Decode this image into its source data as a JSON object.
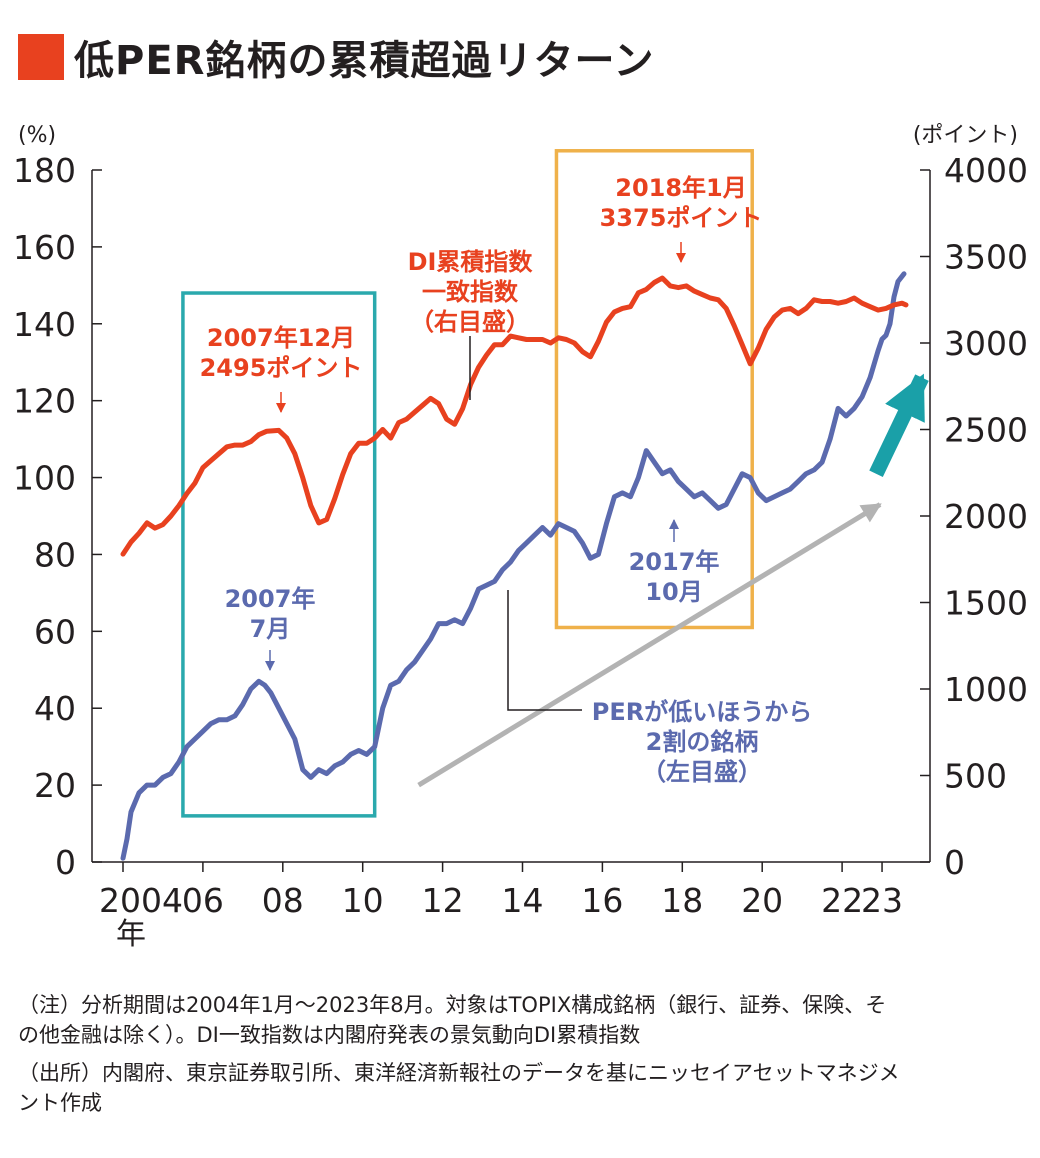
{
  "title": "低PER銘柄の累積超過リターン",
  "colors": {
    "accent": "#e8411f",
    "blue": "#5b6aae",
    "teal": "#23a3a8",
    "box_orange": "#efb14a",
    "box_teal": "#2aa9ad",
    "arrow_gray": "#b3b3b3",
    "arrow_teal": "#1aa0a8",
    "axis": "#231f20"
  },
  "chart_data": {
    "type": "line",
    "title": "低PER銘柄の累積超過リターン",
    "left_axis": {
      "unit": "(%)",
      "ylim": [
        0,
        180
      ],
      "ticks": [
        "0",
        "20",
        "40",
        "60",
        "80",
        "100",
        "120",
        "140",
        "160",
        "180"
      ]
    },
    "right_axis": {
      "unit": "(ポイント)",
      "ylim": [
        0,
        4000
      ],
      "ticks": [
        "0",
        "500",
        "1000",
        "1500",
        "2000",
        "2500",
        "3000",
        "3500",
        "4000"
      ]
    },
    "x_axis": {
      "range": [
        2004.0,
        2024.0
      ],
      "ticks": [
        {
          "x": 2004,
          "label": "2004"
        },
        {
          "x": 2006,
          "label": "06"
        },
        {
          "x": 2008,
          "label": "08"
        },
        {
          "x": 2010,
          "label": "10"
        },
        {
          "x": 2012,
          "label": "12"
        },
        {
          "x": 2014,
          "label": "14"
        },
        {
          "x": 2016,
          "label": "16"
        },
        {
          "x": 2018,
          "label": "18"
        },
        {
          "x": 2020,
          "label": "20"
        },
        {
          "x": 2022,
          "label": "22"
        },
        {
          "x": 2023,
          "label": "23"
        }
      ],
      "year_suffix": "年"
    },
    "series": [
      {
        "name": "PERが低いほうから2割の銘柄（左目盛）",
        "axis": "left",
        "color": "#5b6aae",
        "x": [
          2004.0,
          2004.1,
          2004.2,
          2004.4,
          2004.6,
          2004.8,
          2005.0,
          2005.2,
          2005.4,
          2005.6,
          2005.8,
          2006.0,
          2006.2,
          2006.4,
          2006.6,
          2006.8,
          2007.0,
          2007.2,
          2007.4,
          2007.55,
          2007.7,
          2007.9,
          2008.1,
          2008.3,
          2008.5,
          2008.7,
          2008.9,
          2009.1,
          2009.3,
          2009.5,
          2009.7,
          2009.9,
          2010.1,
          2010.3,
          2010.5,
          2010.7,
          2010.9,
          2011.1,
          2011.3,
          2011.5,
          2011.7,
          2011.9,
          2012.1,
          2012.3,
          2012.5,
          2012.7,
          2012.9,
          2013.1,
          2013.3,
          2013.5,
          2013.7,
          2013.9,
          2014.1,
          2014.3,
          2014.5,
          2014.7,
          2014.9,
          2015.1,
          2015.3,
          2015.5,
          2015.7,
          2015.9,
          2016.1,
          2016.3,
          2016.5,
          2016.7,
          2016.9,
          2017.1,
          2017.3,
          2017.5,
          2017.7,
          2017.9,
          2018.1,
          2018.3,
          2018.5,
          2018.7,
          2018.9,
          2019.1,
          2019.3,
          2019.5,
          2019.7,
          2019.9,
          2020.1,
          2020.3,
          2020.5,
          2020.7,
          2020.9,
          2021.1,
          2021.3,
          2021.5,
          2021.7,
          2021.9,
          2022.1,
          2022.3,
          2022.5,
          2022.7,
          2022.9,
          2023.0,
          2023.1,
          2023.2,
          2023.3,
          2023.4,
          2023.55
        ],
        "values": [
          1,
          6,
          13,
          18,
          20,
          20,
          22,
          23,
          26,
          30,
          32,
          34,
          36,
          37,
          37,
          38,
          41,
          45,
          47,
          46,
          44,
          40,
          36,
          32,
          24,
          22,
          24,
          23,
          25,
          26,
          28,
          29,
          28,
          30,
          40,
          46,
          47,
          50,
          52,
          55,
          58,
          62,
          62,
          63,
          62,
          66,
          71,
          72,
          73,
          76,
          78,
          81,
          83,
          85,
          87,
          85,
          88,
          87,
          86,
          83,
          79,
          80,
          88,
          95,
          96,
          95,
          100,
          107,
          104,
          101,
          102,
          99,
          97,
          95,
          96,
          94,
          92,
          93,
          97,
          101,
          100,
          96,
          94,
          95,
          96,
          97,
          99,
          101,
          102,
          104,
          110,
          118,
          116,
          118,
          121,
          126,
          133,
          136,
          137,
          140,
          147,
          151,
          153
        ]
      },
      {
        "name": "DI累積指数一致指数（右目盛）",
        "axis": "right",
        "color": "#e8411f",
        "x": [
          2004.0,
          2004.2,
          2004.4,
          2004.6,
          2004.8,
          2005.0,
          2005.2,
          2005.4,
          2005.6,
          2005.8,
          2006.0,
          2006.2,
          2006.4,
          2006.6,
          2006.8,
          2007.0,
          2007.2,
          2007.4,
          2007.6,
          2007.9,
          2008.1,
          2008.3,
          2008.5,
          2008.7,
          2008.9,
          2009.1,
          2009.3,
          2009.5,
          2009.7,
          2009.9,
          2010.1,
          2010.3,
          2010.5,
          2010.7,
          2010.9,
          2011.1,
          2011.3,
          2011.5,
          2011.7,
          2011.9,
          2012.1,
          2012.3,
          2012.5,
          2012.7,
          2012.9,
          2013.1,
          2013.3,
          2013.5,
          2013.7,
          2013.9,
          2014.1,
          2014.3,
          2014.5,
          2014.7,
          2014.9,
          2015.1,
          2015.3,
          2015.5,
          2015.7,
          2015.9,
          2016.1,
          2016.3,
          2016.5,
          2016.7,
          2016.9,
          2017.1,
          2017.3,
          2017.5,
          2017.7,
          2017.9,
          2018.1,
          2018.3,
          2018.5,
          2018.7,
          2018.9,
          2019.1,
          2019.3,
          2019.5,
          2019.7,
          2019.9,
          2020.1,
          2020.3,
          2020.5,
          2020.7,
          2020.9,
          2021.1,
          2021.3,
          2021.5,
          2021.7,
          2021.9,
          2022.1,
          2022.3,
          2022.5,
          2022.7,
          2022.9,
          2023.1,
          2023.3,
          2023.5,
          2023.6
        ],
        "values": [
          1780,
          1850,
          1900,
          1960,
          1930,
          1950,
          2000,
          2060,
          2130,
          2190,
          2280,
          2320,
          2360,
          2400,
          2410,
          2410,
          2430,
          2470,
          2490,
          2495,
          2450,
          2360,
          2220,
          2060,
          1960,
          1980,
          2100,
          2240,
          2360,
          2420,
          2420,
          2450,
          2500,
          2450,
          2540,
          2560,
          2600,
          2640,
          2680,
          2650,
          2560,
          2530,
          2620,
          2760,
          2860,
          2930,
          2990,
          2990,
          3040,
          3030,
          3020,
          3020,
          3020,
          3000,
          3030,
          3020,
          3000,
          2950,
          2920,
          3010,
          3120,
          3180,
          3200,
          3210,
          3290,
          3310,
          3350,
          3375,
          3330,
          3320,
          3330,
          3300,
          3280,
          3260,
          3250,
          3200,
          3100,
          2990,
          2880,
          2970,
          3080,
          3150,
          3190,
          3200,
          3170,
          3200,
          3250,
          3240,
          3240,
          3230,
          3240,
          3260,
          3230,
          3210,
          3190,
          3200,
          3220,
          3230,
          3220
        ]
      }
    ],
    "boxes": [
      {
        "name": "2007 box",
        "x_range": [
          2005.5,
          2010.3
        ],
        "y_range": [
          12,
          148
        ],
        "color": "#2aa9ad"
      },
      {
        "name": "2017 box",
        "x_range": [
          2014.85,
          2019.75
        ],
        "y_range": [
          61,
          185
        ],
        "color": "#efb14a"
      }
    ],
    "annotations": {
      "red_2007": [
        "2007年12月",
        "2495ポイント"
      ],
      "red_di": [
        "DI累積指数",
        "一致指数",
        "（右目盛）"
      ],
      "red_2018": [
        "2018年1月",
        "3375ポイント"
      ],
      "blue_2007": [
        "2007年",
        "7月"
      ],
      "blue_2017": [
        "2017年",
        "10月"
      ],
      "blue_per": [
        "PERが低いほうから",
        "2割の銘柄",
        "（左目盛）"
      ]
    }
  },
  "notes": [
    "（注）分析期間は2004年1月～2023年8月。対象はTOPIX構成銘柄（銀行、証券、保険、そ",
    "の他金融は除く）。DI一致指数は内閣府発表の景気動向DI累積指数",
    "（出所）内閣府、東京証券取引所、東洋経済新報社のデータを基にニッセイアセットマネジメ",
    "ント作成"
  ]
}
